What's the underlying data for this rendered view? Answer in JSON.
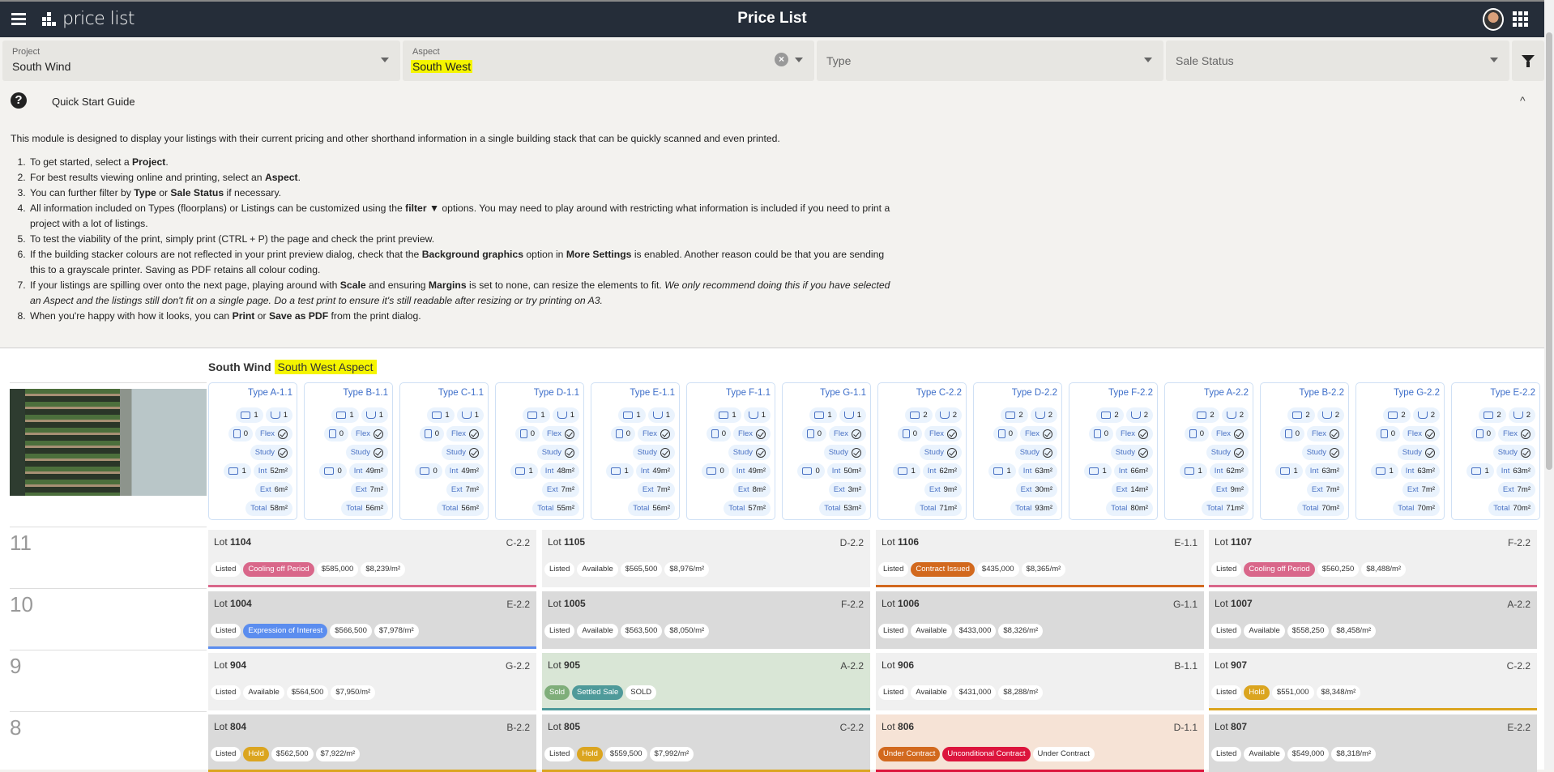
{
  "header": {
    "logo_text": "price list",
    "title": "Price List"
  },
  "filters": {
    "project": {
      "label": "Project",
      "value": "South Wind"
    },
    "aspect": {
      "label": "Aspect",
      "value": "South West"
    },
    "type": {
      "placeholder": "Type"
    },
    "sale_status": {
      "placeholder": "Sale Status"
    }
  },
  "guide": {
    "title": "Quick Start Guide",
    "intro": "This module is designed to display your listings with their current pricing and other shorthand information in a single building stack that can be quickly scanned and even printed.",
    "steps_html": [
      "To get started, select a <b>Project</b>.",
      "For best results viewing online and printing, select an <b>Aspect</b>.",
      "You can further filter by <b>Type</b> or <b>Sale Status</b> if necessary.",
      "All information included on Types (floorplans) or Listings can be customized using the <b>filter ▼</b> options. You may need to play around with restricting what information is included if you need to print a project with a lot of listings.",
      "To test the viability of the print, simply print (CTRL + P) the page and check the print preview.",
      "If the building stacker colours are not reflected in your print preview dialog, check that the <b>Background graphics</b> option in <b>More Settings</b> is enabled. Another reason could be that you are sending this to a grayscale printer. Saving as PDF retains all colour coding.",
      "If your listings are spilling over onto the next page, playing around with <b>Scale</b> and ensuring <b>Margins</b> is set to none, can resize the elements to fit. <i>We only recommend doing this if you have selected an Aspect and the listings still don't fit on a single page. Do a test print to ensure it's still readable after resizing or try printing on A3.</i>",
      "When you're happy with how it looks, you can <b>Print</b> or <b>Save as PDF</b> from the print dialog."
    ]
  },
  "stack": {
    "project": "South Wind",
    "aspect_label": "South West Aspect",
    "labels": {
      "flex": "Flex",
      "study": "Study",
      "int": "Int",
      "ext": "Ext",
      "total": "Total",
      "lot": "Lot"
    },
    "types": [
      {
        "name": "Type A-1.1",
        "bed": "1",
        "bath": "1",
        "powder": "0",
        "car": "1",
        "int": "52m²",
        "ext": "6m²",
        "total": "58m²"
      },
      {
        "name": "Type B-1.1",
        "bed": "1",
        "bath": "1",
        "powder": "0",
        "car": "0",
        "int": "49m²",
        "ext": "7m²",
        "total": "56m²"
      },
      {
        "name": "Type C-1.1",
        "bed": "1",
        "bath": "1",
        "powder": "0",
        "car": "0",
        "int": "49m²",
        "ext": "7m²",
        "total": "56m²"
      },
      {
        "name": "Type D-1.1",
        "bed": "1",
        "bath": "1",
        "powder": "0",
        "car": "1",
        "int": "48m²",
        "ext": "7m²",
        "total": "55m²"
      },
      {
        "name": "Type E-1.1",
        "bed": "1",
        "bath": "1",
        "powder": "0",
        "car": "1",
        "int": "49m²",
        "ext": "7m²",
        "total": "56m²"
      },
      {
        "name": "Type F-1.1",
        "bed": "1",
        "bath": "1",
        "powder": "0",
        "car": "0",
        "int": "49m²",
        "ext": "8m²",
        "total": "57m²"
      },
      {
        "name": "Type G-1.1",
        "bed": "1",
        "bath": "1",
        "powder": "0",
        "car": "0",
        "int": "50m²",
        "ext": "3m²",
        "total": "53m²"
      },
      {
        "name": "Type C-2.2",
        "bed": "2",
        "bath": "2",
        "powder": "0",
        "car": "1",
        "int": "62m²",
        "ext": "9m²",
        "total": "71m²"
      },
      {
        "name": "Type D-2.2",
        "bed": "2",
        "bath": "2",
        "powder": "0",
        "car": "1",
        "int": "63m²",
        "ext": "30m²",
        "total": "93m²"
      },
      {
        "name": "Type F-2.2",
        "bed": "2",
        "bath": "2",
        "powder": "0",
        "car": "1",
        "int": "66m²",
        "ext": "14m²",
        "total": "80m²"
      },
      {
        "name": "Type A-2.2",
        "bed": "2",
        "bath": "2",
        "powder": "0",
        "car": "1",
        "int": "62m²",
        "ext": "9m²",
        "total": "71m²"
      },
      {
        "name": "Type B-2.2",
        "bed": "2",
        "bath": "2",
        "powder": "0",
        "car": "1",
        "int": "63m²",
        "ext": "7m²",
        "total": "70m²"
      },
      {
        "name": "Type G-2.2",
        "bed": "2",
        "bath": "2",
        "powder": "0",
        "car": "1",
        "int": "63m²",
        "ext": "7m²",
        "total": "70m²"
      },
      {
        "name": "Type E-2.2",
        "bed": "2",
        "bath": "2",
        "powder": "0",
        "car": "1",
        "int": "63m²",
        "ext": "7m²",
        "total": "70m²"
      }
    ],
    "floors": [
      {
        "level": "11",
        "lots": [
          {
            "lot": "1104",
            "type": "C-2.2",
            "bg": "#f0f0f0",
            "bar": "#d9678a",
            "tags": [
              {
                "t": "Listed"
              },
              {
                "t": "Cooling off Period",
                "c": "#d9678a"
              },
              {
                "t": "$585,000"
              },
              {
                "t": "$8,239/m²"
              }
            ]
          },
          {
            "lot": "1105",
            "type": "D-2.2",
            "bg": "#f0f0f0",
            "tags": [
              {
                "t": "Listed"
              },
              {
                "t": "Available"
              },
              {
                "t": "$565,500"
              },
              {
                "t": "$8,976/m²"
              }
            ]
          },
          {
            "lot": "1106",
            "type": "E-1.1",
            "bg": "#f0f0f0",
            "bar": "#d2691e",
            "tags": [
              {
                "t": "Listed"
              },
              {
                "t": "Contract Issued",
                "c": "#d2691e"
              },
              {
                "t": "$435,000"
              },
              {
                "t": "$8,365/m²"
              }
            ]
          },
          {
            "lot": "1107",
            "type": "F-2.2",
            "bg": "#f0f0f0",
            "bar": "#d9678a",
            "tags": [
              {
                "t": "Listed"
              },
              {
                "t": "Cooling off Period",
                "c": "#d9678a"
              },
              {
                "t": "$560,250"
              },
              {
                "t": "$8,488/m²"
              }
            ]
          }
        ]
      },
      {
        "level": "10",
        "lots": [
          {
            "lot": "1004",
            "type": "E-2.2",
            "bg": "#dadada",
            "bar": "#5b8def",
            "tags": [
              {
                "t": "Listed"
              },
              {
                "t": "Expression of Interest",
                "c": "#5b8def"
              },
              {
                "t": "$566,500"
              },
              {
                "t": "$7,978/m²"
              }
            ]
          },
          {
            "lot": "1005",
            "type": "F-2.2",
            "bg": "#dadada",
            "tags": [
              {
                "t": "Listed"
              },
              {
                "t": "Available"
              },
              {
                "t": "$563,500"
              },
              {
                "t": "$8,050/m²"
              }
            ]
          },
          {
            "lot": "1006",
            "type": "G-1.1",
            "bg": "#dadada",
            "tags": [
              {
                "t": "Listed"
              },
              {
                "t": "Available"
              },
              {
                "t": "$433,000"
              },
              {
                "t": "$8,326/m²"
              }
            ]
          },
          {
            "lot": "1007",
            "type": "A-2.2",
            "bg": "#dadada",
            "tags": [
              {
                "t": "Listed"
              },
              {
                "t": "Available"
              },
              {
                "t": "$558,250"
              },
              {
                "t": "$8,458/m²"
              }
            ]
          }
        ]
      },
      {
        "level": "9",
        "lots": [
          {
            "lot": "904",
            "type": "G-2.2",
            "bg": "#f0f0f0",
            "tags": [
              {
                "t": "Listed"
              },
              {
                "t": "Available"
              },
              {
                "t": "$564,500"
              },
              {
                "t": "$7,950/m²"
              }
            ]
          },
          {
            "lot": "905",
            "type": "A-2.2",
            "bg": "#d9e6d6",
            "bar": "#4f9a9a",
            "tags": [
              {
                "t": "Sold",
                "c": "#7fae7a"
              },
              {
                "t": "Settled Sale",
                "c": "#4f9a9a"
              },
              {
                "t": "SOLD"
              }
            ]
          },
          {
            "lot": "906",
            "type": "B-1.1",
            "bg": "#f0f0f0",
            "tags": [
              {
                "t": "Listed"
              },
              {
                "t": "Available"
              },
              {
                "t": "$431,000"
              },
              {
                "t": "$8,288/m²"
              }
            ]
          },
          {
            "lot": "907",
            "type": "C-2.2",
            "bg": "#f0f0f0",
            "bar": "#dba520",
            "tags": [
              {
                "t": "Listed"
              },
              {
                "t": "Hold",
                "c": "#dba520"
              },
              {
                "t": "$551,000"
              },
              {
                "t": "$8,348/m²"
              }
            ]
          }
        ]
      },
      {
        "level": "8",
        "lots": [
          {
            "lot": "804",
            "type": "B-2.2",
            "bg": "#dadada",
            "bar": "#dba520",
            "tags": [
              {
                "t": "Listed"
              },
              {
                "t": "Hold",
                "c": "#dba520"
              },
              {
                "t": "$562,500"
              },
              {
                "t": "$7,922/m²"
              }
            ]
          },
          {
            "lot": "805",
            "type": "C-2.2",
            "bg": "#dadada",
            "bar": "#dba520",
            "tags": [
              {
                "t": "Listed"
              },
              {
                "t": "Hold",
                "c": "#dba520"
              },
              {
                "t": "$559,500"
              },
              {
                "t": "$7,992/m²"
              }
            ]
          },
          {
            "lot": "806",
            "type": "D-1.1",
            "bg": "#f6e3d6",
            "bar": "#dc143c",
            "tags": [
              {
                "t": "Under Contract",
                "c": "#d2691e"
              },
              {
                "t": "Unconditional Contract",
                "c": "#dc143c"
              },
              {
                "t": "Under Contract"
              }
            ]
          },
          {
            "lot": "807",
            "type": "E-2.2",
            "bg": "#dadada",
            "tags": [
              {
                "t": "Listed"
              },
              {
                "t": "Available"
              },
              {
                "t": "$549,000"
              },
              {
                "t": "$8,318/m²"
              }
            ]
          }
        ]
      }
    ]
  }
}
